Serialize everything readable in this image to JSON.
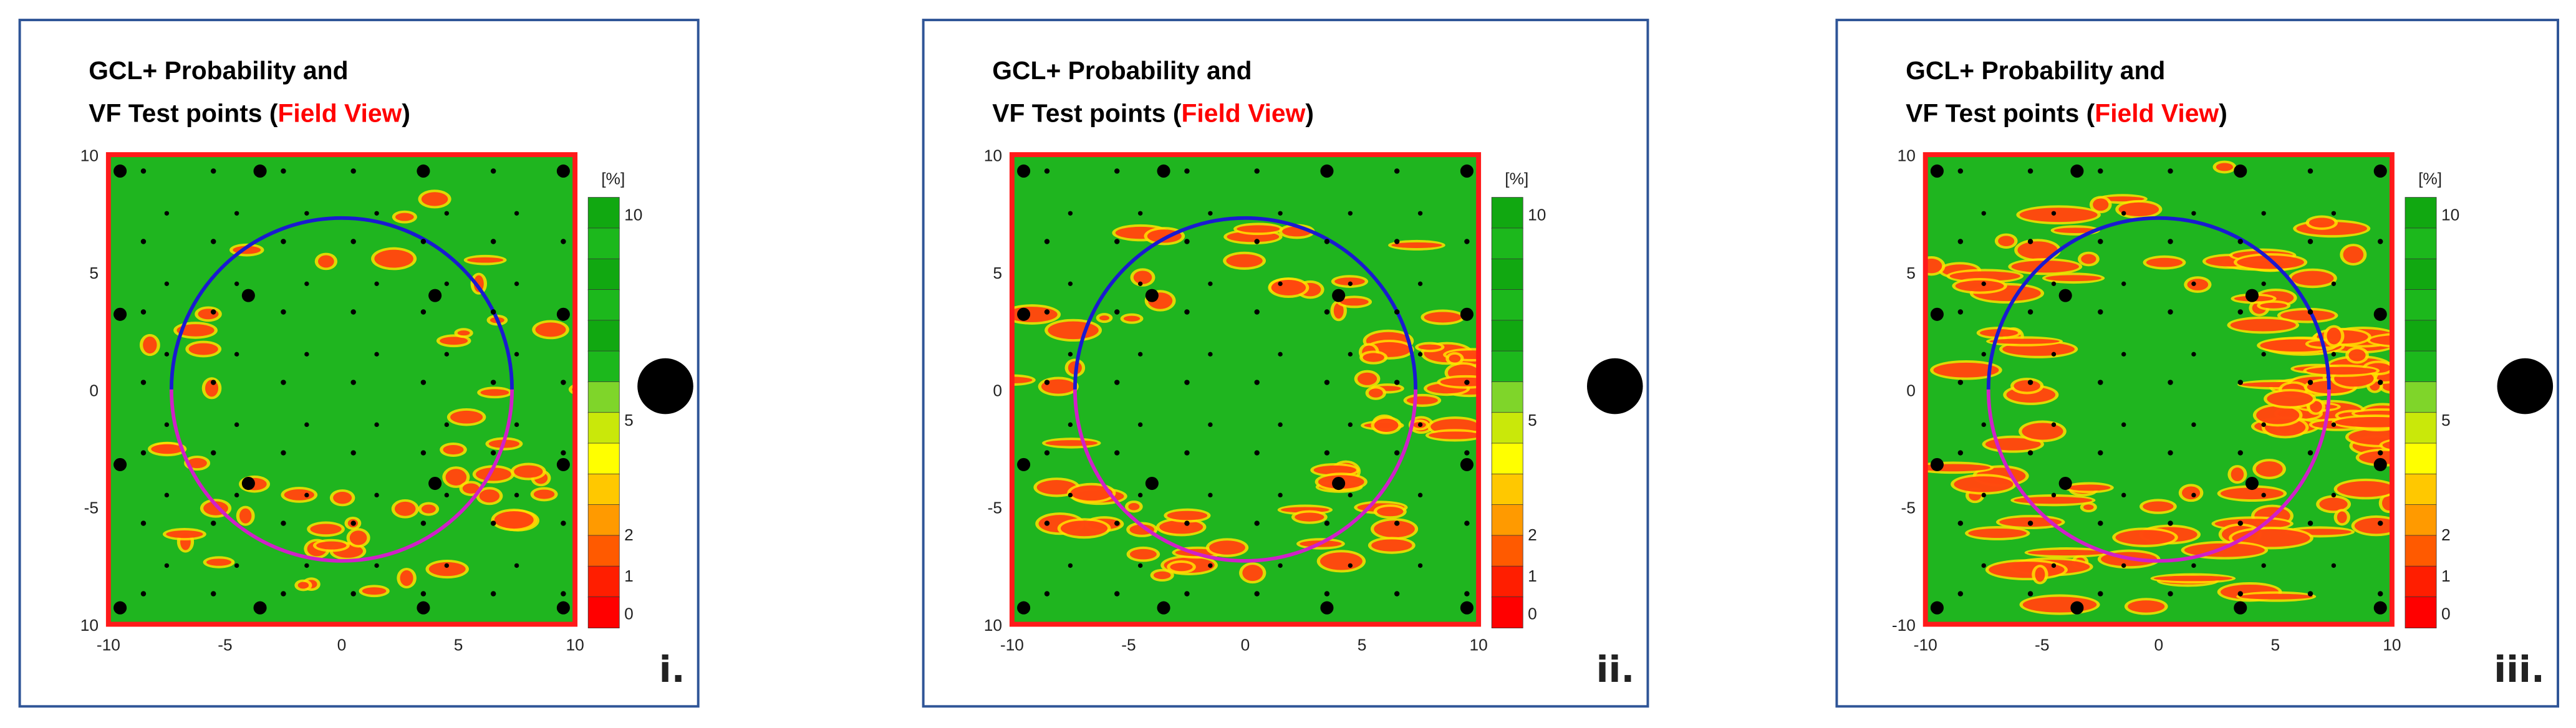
{
  "panels": [
    {
      "title_line1": "GCL+ Probability and",
      "title_line2": "VF Test points (",
      "title_highlight": "Field View",
      "title_end": ")",
      "y_tick_labels": [
        "10",
        "5",
        "0",
        "-5",
        "10"
      ],
      "x_tick_labels": [
        "-10",
        "-5",
        "0",
        "5",
        "10"
      ],
      "colorbar_unit": "[%]",
      "colorbar_labels": [
        "10",
        "5",
        "2",
        "1",
        "0"
      ],
      "label": "i."
    },
    {
      "title_line1": "GCL+ Probability and",
      "title_line2": "VF Test points (",
      "title_highlight": "Field View",
      "title_end": ")",
      "y_tick_labels": [
        "10",
        "5",
        "0",
        "-5",
        "10"
      ],
      "x_tick_labels": [
        "-10",
        "-5",
        "0",
        "5",
        "10"
      ],
      "colorbar_unit": "[%]",
      "colorbar_labels": [
        "10",
        "5",
        "2",
        "1",
        "0"
      ],
      "label": "ii."
    },
    {
      "title_line1": "GCL+ Probability and",
      "title_line2": "VF Test points (",
      "title_highlight": "Field View",
      "title_end": ")",
      "y_tick_labels": [
        "10",
        "5",
        "0",
        "-5",
        "-10"
      ],
      "x_tick_labels": [
        "-10",
        "-5",
        "0",
        "5",
        "10"
      ],
      "colorbar_unit": "[%]",
      "colorbar_labels": [
        "10",
        "5",
        "2",
        "1",
        "0"
      ],
      "label": "iii."
    }
  ]
}
